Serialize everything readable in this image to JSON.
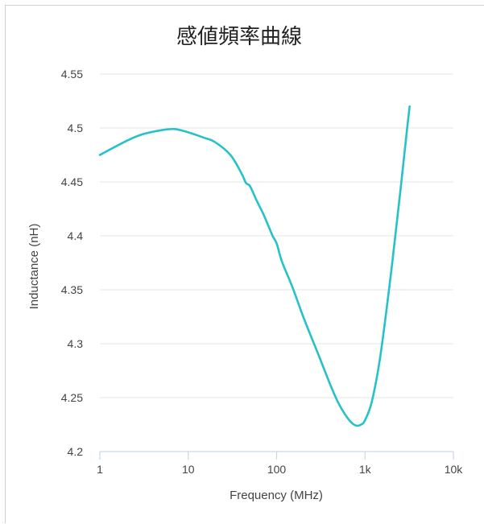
{
  "chart_data": {
    "type": "line",
    "title": "感値頻率曲線",
    "xlabel": "Frequency (MHz)",
    "ylabel": "Inductance (nH)",
    "x_scale": "log",
    "xlim": [
      1,
      10000
    ],
    "ylim": [
      4.2,
      4.55
    ],
    "x_ticks": [
      {
        "value": 1,
        "label": "1"
      },
      {
        "value": 10,
        "label": "10"
      },
      {
        "value": 100,
        "label": "100"
      },
      {
        "value": 1000,
        "label": "1k"
      },
      {
        "value": 10000,
        "label": "10k"
      }
    ],
    "y_ticks": [
      {
        "value": 4.2,
        "label": "4.2"
      },
      {
        "value": 4.25,
        "label": "4.25"
      },
      {
        "value": 4.3,
        "label": "4.3"
      },
      {
        "value": 4.35,
        "label": "4.35"
      },
      {
        "value": 4.4,
        "label": "4.4"
      },
      {
        "value": 4.45,
        "label": "4.45"
      },
      {
        "value": 4.5,
        "label": "4.5"
      },
      {
        "value": 4.55,
        "label": "4.55"
      }
    ],
    "grid": "horizontal",
    "line_color": "#26c1c9",
    "series": [
      {
        "x": [
          1,
          2,
          3,
          5,
          7,
          10,
          15,
          20,
          30,
          40,
          45,
          50,
          60,
          70,
          80,
          90,
          100,
          110,
          120,
          150,
          200,
          250,
          300,
          400,
          500,
          600,
          700,
          800,
          900,
          1000,
          1200,
          1500,
          2000,
          2500,
          3000,
          3200
        ],
        "y": [
          4.475,
          4.488,
          4.494,
          4.498,
          4.499,
          4.496,
          4.491,
          4.487,
          4.475,
          4.458,
          4.449,
          4.446,
          4.432,
          4.421,
          4.41,
          4.4,
          4.393,
          4.381,
          4.372,
          4.353,
          4.325,
          4.305,
          4.289,
          4.263,
          4.245,
          4.234,
          4.227,
          4.224,
          4.225,
          4.229,
          4.247,
          4.29,
          4.37,
          4.44,
          4.5,
          4.52
        ]
      }
    ]
  }
}
